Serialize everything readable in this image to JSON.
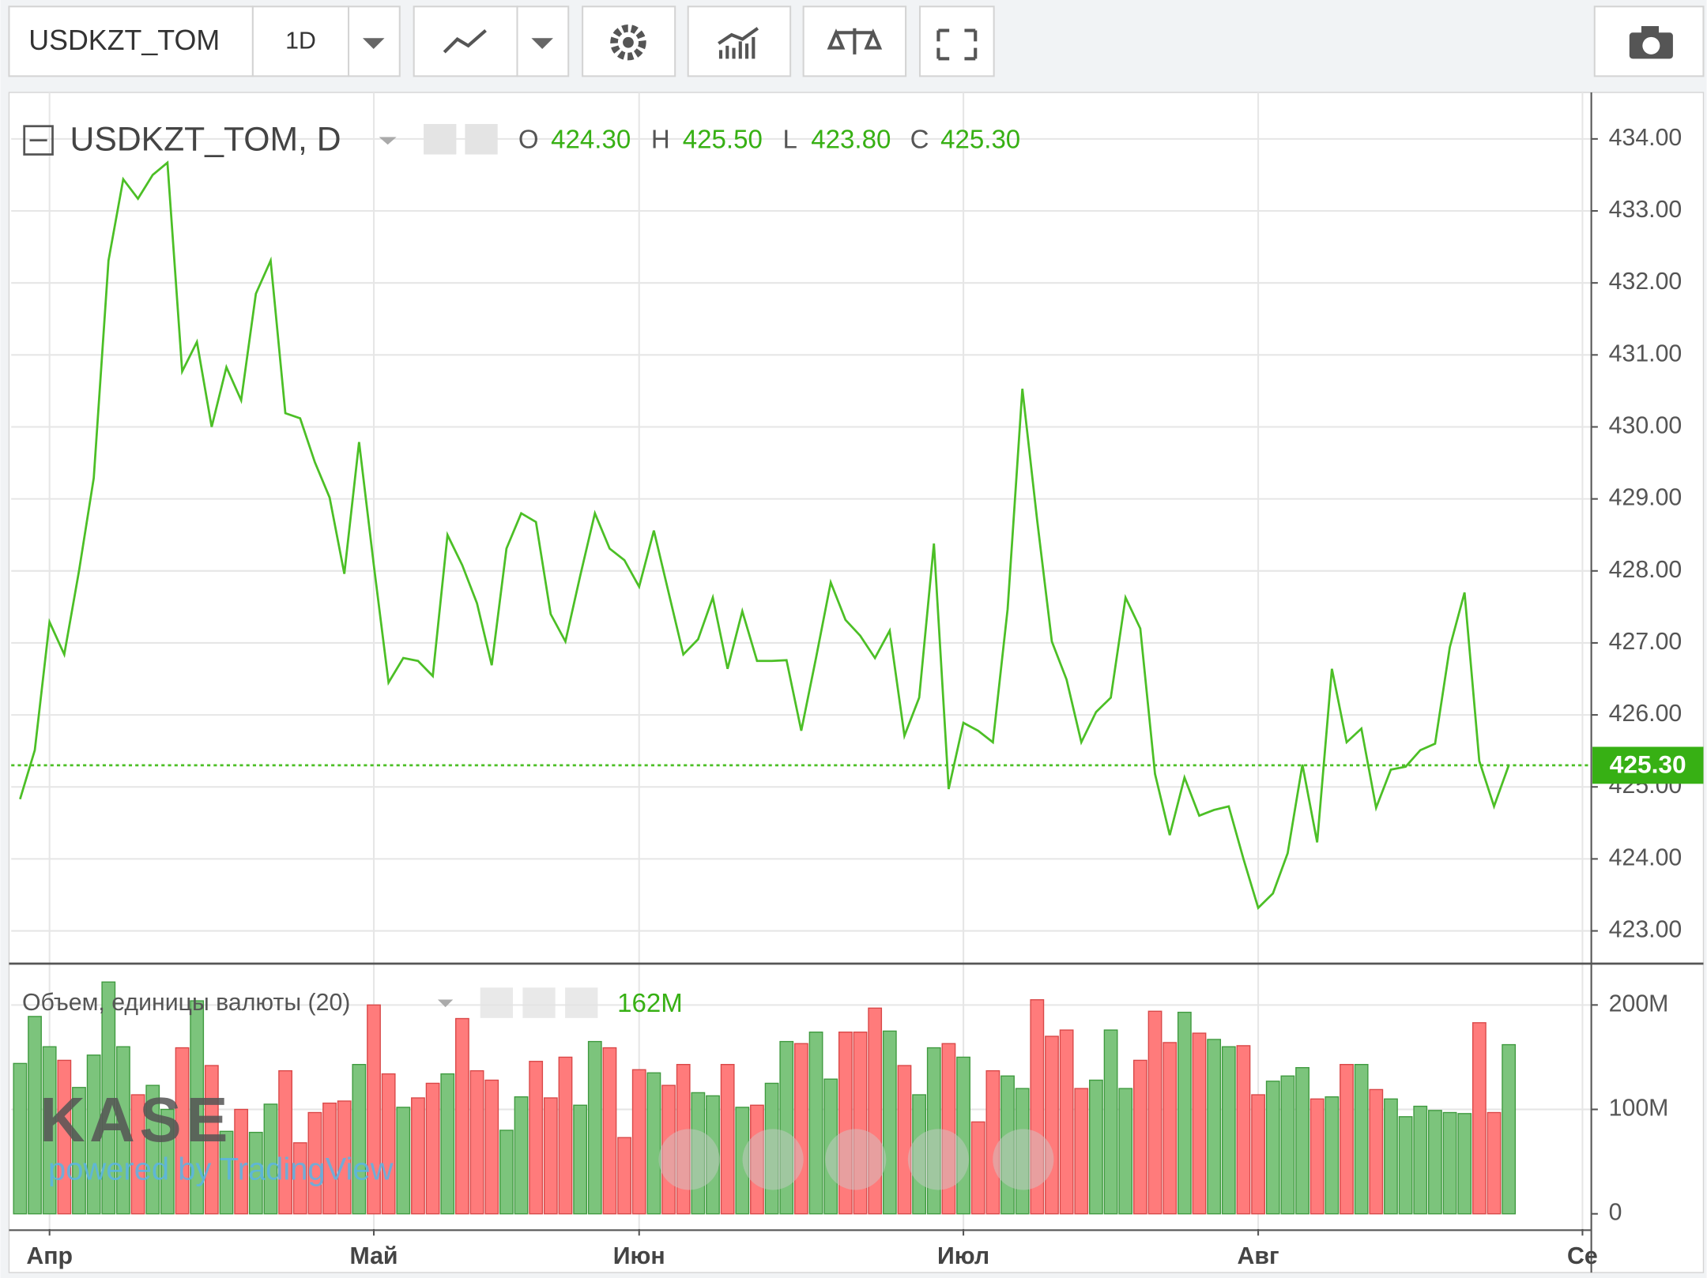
{
  "toolbar": {
    "symbol": "USDKZT_TOM",
    "interval": "1D"
  },
  "watermark": {
    "logo": "KASE",
    "tagline": "powered by TradingView"
  },
  "chart_data": {
    "type": "line",
    "title": "USDKZT_TOM, D",
    "ohlc": {
      "open_key": "O",
      "open": "424.30",
      "high_key": "H",
      "high": "425.50",
      "low_key": "L",
      "low": "423.80",
      "close_key": "C",
      "close": "425.30"
    },
    "x": [
      0,
      1,
      2,
      3,
      4,
      5,
      6,
      7,
      8,
      9,
      10,
      11,
      12,
      13,
      14,
      15,
      16,
      17,
      18,
      19,
      20,
      21,
      22,
      23,
      24,
      25,
      26,
      27,
      28,
      29,
      30,
      31,
      32,
      33,
      34,
      35,
      36,
      37,
      38,
      39,
      40,
      41,
      42,
      43,
      44,
      45,
      46,
      47,
      48,
      49,
      50,
      51,
      52,
      53,
      54,
      55,
      56,
      57,
      58,
      59,
      60,
      61,
      62,
      63,
      64,
      65,
      66,
      67,
      68,
      69,
      70,
      71,
      72,
      73,
      74,
      75,
      76,
      77,
      78,
      79,
      80,
      81,
      82,
      83,
      84,
      85,
      86,
      87,
      88,
      89,
      90,
      91,
      92,
      93,
      94,
      95,
      96,
      97,
      98,
      99,
      100,
      101
    ],
    "series": [
      {
        "name": "USDKZT_TOM",
        "color": "#4cbf26",
        "values": [
          424.83,
          425.51,
          427.29,
          426.84,
          428.0,
          429.29,
          432.31,
          433.44,
          433.17,
          433.5,
          433.67,
          430.77,
          431.18,
          430.0,
          430.83,
          430.37,
          431.85,
          432.31,
          430.19,
          430.12,
          429.51,
          429.02,
          427.96,
          429.79,
          428.08,
          426.45,
          426.79,
          426.75,
          426.54,
          428.5,
          428.08,
          427.55,
          426.69,
          428.31,
          428.8,
          428.68,
          427.4,
          427.02,
          427.93,
          428.8,
          428.31,
          428.15,
          427.78,
          428.56,
          427.7,
          426.84,
          427.05,
          427.63,
          426.64,
          427.44,
          426.75,
          426.75,
          426.76,
          425.78,
          426.79,
          427.84,
          427.32,
          427.1,
          426.79,
          427.17,
          425.71,
          426.24,
          428.38,
          424.97,
          425.89,
          425.78,
          425.62,
          427.47,
          430.53,
          428.71,
          427.02,
          426.49,
          425.62,
          426.04,
          426.24,
          427.63,
          427.2,
          425.18,
          424.33,
          425.13,
          424.6,
          424.68,
          424.73,
          424.0,
          423.32,
          423.52,
          424.08,
          425.31,
          424.23,
          426.64,
          425.62,
          425.81,
          424.71,
          425.24,
          425.28,
          425.51,
          425.6,
          426.94,
          427.7,
          425.36,
          424.73,
          425.3
        ]
      }
    ],
    "xlim": [
      -0.6,
      106.6
    ],
    "xticks": [
      {
        "value": 2,
        "label": "Апр"
      },
      {
        "value": 24,
        "label": "Май"
      },
      {
        "value": 42,
        "label": "Июн"
      },
      {
        "value": 64,
        "label": "Июл"
      },
      {
        "value": 84,
        "label": "Авг"
      },
      {
        "value": 106,
        "label": "Се"
      }
    ],
    "ylim": [
      422.56,
      434.6
    ],
    "yticks": [
      {
        "value": 423,
        "label": "423.00"
      },
      {
        "value": 424,
        "label": "424.00"
      },
      {
        "value": 425,
        "label": "425.00"
      },
      {
        "value": 426,
        "label": "426.00"
      },
      {
        "value": 427,
        "label": "427.00"
      },
      {
        "value": 428,
        "label": "428.00"
      },
      {
        "value": 429,
        "label": "429.00"
      },
      {
        "value": 430,
        "label": "430.00"
      },
      {
        "value": 431,
        "label": "431.00"
      },
      {
        "value": 432,
        "label": "432.00"
      },
      {
        "value": 433,
        "label": "433.00"
      },
      {
        "value": 434,
        "label": "434.00"
      }
    ],
    "grid": true,
    "volume": {
      "name": "Объем, единицы валюты (20)",
      "last_label": "162M",
      "up_color": "#7cc47c",
      "down_color": "#ff7b7b",
      "values": [
        144000000,
        189000000,
        160000000,
        147000000,
        121000000,
        152000000,
        222000000,
        160000000,
        114000000,
        123000000,
        100000000,
        159000000,
        204000000,
        142000000,
        79000000,
        100000000,
        78000000,
        105000000,
        137000000,
        68000000,
        97000000,
        106000000,
        108000000,
        143000000,
        200000000,
        134000000,
        102000000,
        111000000,
        125000000,
        134000000,
        187000000,
        137000000,
        128000000,
        80000000,
        112000000,
        146000000,
        111000000,
        150000000,
        104000000,
        165000000,
        159000000,
        73000000,
        138000000,
        135000000,
        123000000,
        143000000,
        116000000,
        113000000,
        143000000,
        102000000,
        104000000,
        125000000,
        165000000,
        163000000,
        174000000,
        129000000,
        174000000,
        174000000,
        197000000,
        175000000,
        142000000,
        114000000,
        159000000,
        163000000,
        150000000,
        88000000,
        137000000,
        132000000,
        120000000,
        205000000,
        170000000,
        176000000,
        120000000,
        128000000,
        176000000,
        120000000,
        147000000,
        194000000,
        164000000,
        193000000,
        173000000,
        167000000,
        160000000,
        161000000,
        114000000,
        127000000,
        132000000,
        140000000,
        110000000,
        112000000,
        143000000,
        143000000,
        119000000,
        110000000,
        93000000,
        103000000,
        99000000,
        97000000,
        96000000,
        183000000,
        97000000,
        162000000
      ],
      "ylim": [
        -14600000,
        235400000
      ],
      "yticks": [
        0,
        {
          "value": 100000000,
          "label": "100M"
        },
        {
          "value": 200000000,
          "label": "200M"
        }
      ]
    }
  }
}
